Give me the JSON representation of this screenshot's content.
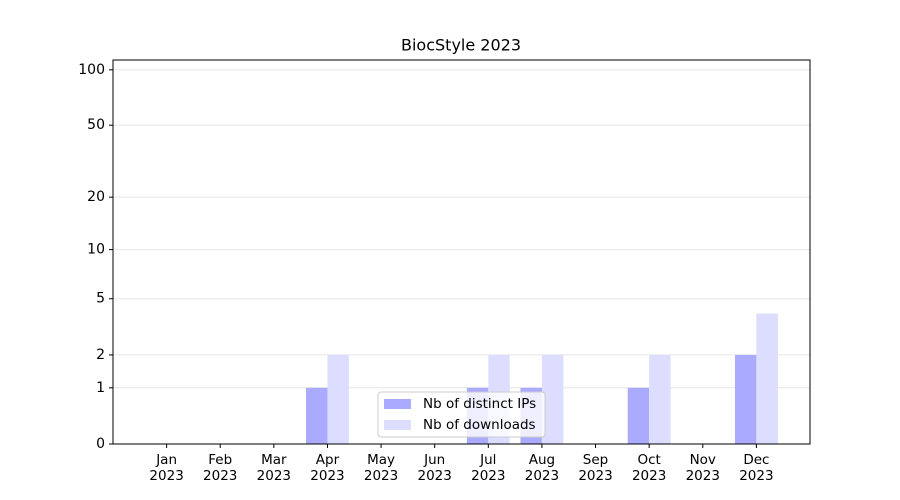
{
  "chart_data": {
    "type": "bar",
    "title": "BiocStyle 2023",
    "categories": [
      "Jan 2023",
      "Feb 2023",
      "Mar 2023",
      "Apr 2023",
      "May 2023",
      "Jun 2023",
      "Jul 2023",
      "Aug 2023",
      "Sep 2023",
      "Oct 2023",
      "Nov 2023",
      "Dec 2023"
    ],
    "series": [
      {
        "name": "Nb of distinct IPs",
        "color": "#aaaaff",
        "values": [
          0,
          0,
          0,
          1,
          0,
          0,
          1,
          1,
          0,
          1,
          0,
          2
        ]
      },
      {
        "name": "Nb of downloads",
        "color": "#ddddff",
        "values": [
          0,
          0,
          0,
          2,
          0,
          0,
          2,
          2,
          0,
          2,
          0,
          4
        ]
      }
    ],
    "yscale": "log1p",
    "ylim": [
      0,
      113
    ],
    "yticks": [
      0,
      1,
      2,
      5,
      10,
      20,
      50,
      100
    ],
    "grid": true,
    "legend": "lower center"
  }
}
